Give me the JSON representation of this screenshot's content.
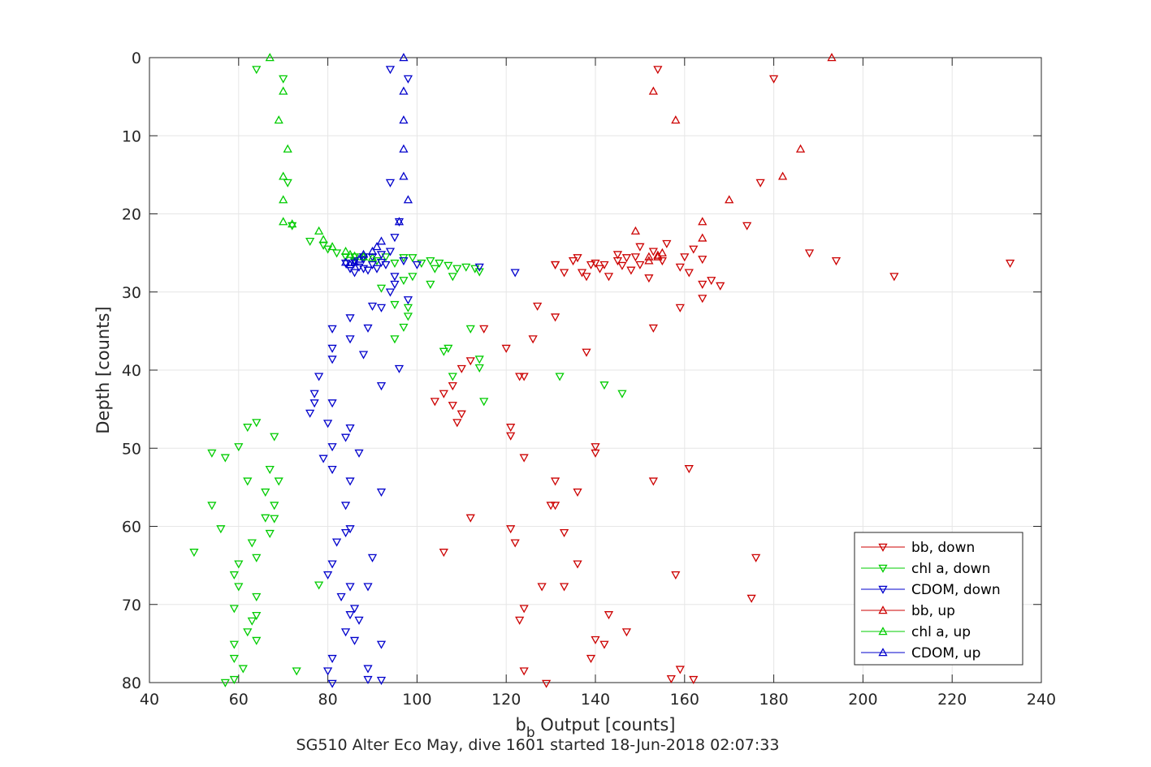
{
  "chart_data": {
    "type": "scatter",
    "xlabel": "b_b Output [counts]",
    "xlabel_main": "b",
    "xlabel_sub": "b",
    "xlabel_rest": " Output [counts]",
    "ylabel": "Depth [counts]",
    "footer": "SG510 Alter Eco May, dive 1601 started 18-Jun-2018 02:07:33",
    "xlim": [
      40,
      240
    ],
    "ylim": [
      0,
      80
    ],
    "y_reversed": true,
    "xticks": [
      40,
      60,
      80,
      100,
      120,
      140,
      160,
      180,
      200,
      220,
      240
    ],
    "yticks": [
      0,
      10,
      20,
      30,
      40,
      50,
      60,
      70,
      80
    ],
    "grid": true,
    "legend_position": "bottom-right",
    "series": [
      {
        "name": "bb, down",
        "color": "#cc0000",
        "marker": "triangle-down",
        "points": [
          [
            154,
            1.5
          ],
          [
            180,
            2.7
          ],
          [
            177,
            16
          ],
          [
            174,
            21.5
          ],
          [
            188,
            25
          ],
          [
            194,
            26
          ],
          [
            233,
            26.3
          ],
          [
            207,
            28
          ],
          [
            149,
            25.5
          ],
          [
            145,
            26
          ],
          [
            140,
            26.3
          ],
          [
            136,
            25.6
          ],
          [
            131,
            26.5
          ],
          [
            133,
            27.5
          ],
          [
            148,
            27.2
          ],
          [
            143,
            28
          ],
          [
            138,
            28
          ],
          [
            160,
            25.5
          ],
          [
            155,
            26
          ],
          [
            159,
            26.8
          ],
          [
            164,
            25.8
          ],
          [
            166,
            28.5
          ],
          [
            168,
            29.2
          ],
          [
            164,
            29
          ],
          [
            164,
            30.8
          ],
          [
            159,
            32
          ],
          [
            153,
            34.6
          ],
          [
            127,
            31.8
          ],
          [
            131,
            33.2
          ],
          [
            138,
            37.7
          ],
          [
            126,
            36
          ],
          [
            120,
            37.2
          ],
          [
            112,
            38.8
          ],
          [
            110,
            39.8
          ],
          [
            115,
            34.7
          ],
          [
            123,
            40.8
          ],
          [
            124,
            40.8
          ],
          [
            108,
            42
          ],
          [
            106,
            43
          ],
          [
            104,
            44
          ],
          [
            108,
            44.5
          ],
          [
            110,
            45.6
          ],
          [
            109,
            46.7
          ],
          [
            121,
            47.3
          ],
          [
            121,
            48.4
          ],
          [
            140,
            49.8
          ],
          [
            140,
            50.6
          ],
          [
            124,
            51.2
          ],
          [
            161,
            52.6
          ],
          [
            131,
            54.2
          ],
          [
            153,
            54.2
          ],
          [
            136,
            55.6
          ],
          [
            130,
            57.3
          ],
          [
            131,
            57.3
          ],
          [
            112,
            58.9
          ],
          [
            121,
            60.3
          ],
          [
            133,
            60.8
          ],
          [
            122,
            62.1
          ],
          [
            106,
            63.3
          ],
          [
            176,
            64
          ],
          [
            136,
            64.8
          ],
          [
            158,
            66.2
          ],
          [
            128,
            67.7
          ],
          [
            133,
            67.7
          ],
          [
            175,
            69.2
          ],
          [
            124,
            70.5
          ],
          [
            143,
            71.3
          ],
          [
            123,
            72
          ],
          [
            147,
            73.5
          ],
          [
            140,
            74.5
          ],
          [
            142,
            75.1
          ],
          [
            139,
            76.9
          ],
          [
            124,
            78.5
          ],
          [
            159,
            78.3
          ],
          [
            157,
            79.5
          ],
          [
            162,
            79.6
          ],
          [
            129,
            80.1
          ],
          [
            131,
            26.5
          ],
          [
            139,
            26.5
          ],
          [
            142,
            26.5
          ],
          [
            135,
            26
          ],
          [
            147,
            25.6
          ],
          [
            152,
            28.2
          ],
          [
            162,
            24.5
          ],
          [
            161,
            27.5
          ],
          [
            156,
            23.8
          ],
          [
            150,
            24.2
          ],
          [
            145,
            25.2
          ],
          [
            150,
            26.5
          ],
          [
            153,
            24.8
          ],
          [
            146,
            26.6
          ],
          [
            141,
            27
          ],
          [
            137,
            27.5
          ]
        ]
      },
      {
        "name": "chl a, down",
        "color": "#00cc00",
        "marker": "triangle-down",
        "points": [
          [
            64,
            1.5
          ],
          [
            70,
            2.7
          ],
          [
            71,
            16
          ],
          [
            72,
            21.5
          ],
          [
            76,
            23.5
          ],
          [
            79,
            24
          ],
          [
            80,
            24.5
          ],
          [
            82,
            25
          ],
          [
            84,
            25.5
          ],
          [
            86,
            25.5
          ],
          [
            88,
            25.5
          ],
          [
            91,
            26
          ],
          [
            93,
            25.5
          ],
          [
            95,
            26.3
          ],
          [
            97,
            25.6
          ],
          [
            99,
            25.6
          ],
          [
            101,
            26.3
          ],
          [
            103,
            26
          ],
          [
            105,
            26.3
          ],
          [
            107,
            26.6
          ],
          [
            109,
            27
          ],
          [
            111,
            26.8
          ],
          [
            113,
            27
          ],
          [
            114,
            27.4
          ],
          [
            104,
            27
          ],
          [
            108,
            28
          ],
          [
            103,
            29
          ],
          [
            99,
            28
          ],
          [
            97,
            28.5
          ],
          [
            92,
            29.5
          ],
          [
            95,
            31.6
          ],
          [
            98,
            32
          ],
          [
            98,
            33.1
          ],
          [
            97,
            34.5
          ],
          [
            95,
            36
          ],
          [
            106,
            37.6
          ],
          [
            114,
            38.6
          ],
          [
            107,
            37.2
          ],
          [
            112,
            34.7
          ],
          [
            114,
            39.7
          ],
          [
            108,
            40.8
          ],
          [
            132,
            40.8
          ],
          [
            142,
            41.9
          ],
          [
            146,
            43
          ],
          [
            115,
            44
          ],
          [
            64,
            46.7
          ],
          [
            62,
            47.3
          ],
          [
            68,
            48.5
          ],
          [
            60,
            49.8
          ],
          [
            54,
            50.6
          ],
          [
            57,
            51.2
          ],
          [
            67,
            52.7
          ],
          [
            62,
            54.2
          ],
          [
            69,
            54.2
          ],
          [
            66,
            55.6
          ],
          [
            54,
            57.3
          ],
          [
            68,
            57.3
          ],
          [
            66,
            58.9
          ],
          [
            56,
            60.3
          ],
          [
            67,
            60.9
          ],
          [
            63,
            62.1
          ],
          [
            50,
            63.3
          ],
          [
            64,
            64
          ],
          [
            60,
            64.8
          ],
          [
            59,
            66.2
          ],
          [
            60,
            67.7
          ],
          [
            78,
            67.5
          ],
          [
            64,
            69
          ],
          [
            59,
            70.5
          ],
          [
            64,
            71.4
          ],
          [
            63,
            72.1
          ],
          [
            62,
            73.5
          ],
          [
            64,
            74.6
          ],
          [
            59,
            75.1
          ],
          [
            59,
            76.9
          ],
          [
            61,
            78.2
          ],
          [
            73,
            78.5
          ],
          [
            59,
            79.6
          ],
          [
            57,
            80
          ],
          [
            68,
            59
          ]
        ]
      },
      {
        "name": "CDOM, down",
        "color": "#0000cc",
        "marker": "triangle-down",
        "points": [
          [
            94,
            1.5
          ],
          [
            98,
            2.7
          ],
          [
            94,
            16
          ],
          [
            96,
            21
          ],
          [
            95,
            23
          ],
          [
            94,
            24.8
          ],
          [
            92,
            25.2
          ],
          [
            90,
            25.5
          ],
          [
            88,
            25.8
          ],
          [
            86,
            26
          ],
          [
            84,
            26.3
          ],
          [
            85,
            27
          ],
          [
            86,
            27.5
          ],
          [
            88,
            27
          ],
          [
            90,
            26.5
          ],
          [
            92,
            26.2
          ],
          [
            88,
            25.5
          ],
          [
            86,
            26.2
          ],
          [
            87,
            26.8
          ],
          [
            89,
            27.2
          ],
          [
            91,
            27
          ],
          [
            93,
            26.5
          ],
          [
            97,
            26
          ],
          [
            100,
            26.5
          ],
          [
            95,
            28
          ],
          [
            95,
            29
          ],
          [
            94,
            30
          ],
          [
            98,
            31
          ],
          [
            90,
            31.8
          ],
          [
            92,
            32
          ],
          [
            85,
            33.3
          ],
          [
            89,
            34.6
          ],
          [
            81,
            34.7
          ],
          [
            85,
            36
          ],
          [
            81,
            37.2
          ],
          [
            81,
            38.6
          ],
          [
            88,
            38
          ],
          [
            96,
            39.8
          ],
          [
            92,
            42
          ],
          [
            78,
            40.8
          ],
          [
            77,
            43
          ],
          [
            77,
            44.2
          ],
          [
            81,
            44.2
          ],
          [
            76,
            45.5
          ],
          [
            80,
            46.8
          ],
          [
            85,
            47.4
          ],
          [
            84,
            48.6
          ],
          [
            81,
            49.8
          ],
          [
            87,
            50.6
          ],
          [
            79,
            51.3
          ],
          [
            81,
            52.7
          ],
          [
            85,
            54.2
          ],
          [
            92,
            55.6
          ],
          [
            84,
            57.3
          ],
          [
            85,
            60.3
          ],
          [
            84,
            60.8
          ],
          [
            82,
            62
          ],
          [
            81,
            64.8
          ],
          [
            90,
            64
          ],
          [
            80,
            66.2
          ],
          [
            85,
            67.7
          ],
          [
            89,
            67.7
          ],
          [
            83,
            69
          ],
          [
            86,
            70.5
          ],
          [
            85,
            71.3
          ],
          [
            87,
            72
          ],
          [
            84,
            73.5
          ],
          [
            86,
            74.6
          ],
          [
            92,
            75.1
          ],
          [
            81,
            76.9
          ],
          [
            89,
            78.2
          ],
          [
            80,
            78.5
          ],
          [
            89,
            79.6
          ],
          [
            92,
            79.7
          ],
          [
            81,
            80.1
          ],
          [
            114,
            26.8
          ],
          [
            122,
            27.5
          ]
        ]
      },
      {
        "name": "bb, up",
        "color": "#cc0000",
        "marker": "triangle-up",
        "points": [
          [
            193,
            0
          ],
          [
            153,
            4.3
          ],
          [
            158,
            8
          ],
          [
            186,
            11.7
          ],
          [
            182,
            15.2
          ],
          [
            170,
            18.2
          ],
          [
            164,
            21
          ],
          [
            149,
            22.2
          ],
          [
            164,
            23.1
          ],
          [
            155,
            25
          ],
          [
            154,
            25.3
          ],
          [
            154,
            25.5
          ],
          [
            152,
            25.5
          ],
          [
            152,
            26
          ]
        ]
      },
      {
        "name": "chl a, up",
        "color": "#00cc00",
        "marker": "triangle-up",
        "points": [
          [
            67,
            0
          ],
          [
            70,
            4.3
          ],
          [
            69,
            8
          ],
          [
            71,
            11.7
          ],
          [
            70,
            15.2
          ],
          [
            70,
            18.2
          ],
          [
            70,
            21
          ],
          [
            72,
            21.3
          ],
          [
            78,
            22.2
          ],
          [
            79,
            23.3
          ],
          [
            81,
            24.2
          ],
          [
            84,
            24.8
          ],
          [
            85,
            25.2
          ],
          [
            86,
            25.4
          ],
          [
            88,
            25.5
          ],
          [
            90,
            25.6
          ]
        ]
      },
      {
        "name": "CDOM, up",
        "color": "#0000cc",
        "marker": "triangle-up",
        "points": [
          [
            97,
            0
          ],
          [
            97,
            4.3
          ],
          [
            97,
            8
          ],
          [
            97,
            11.7
          ],
          [
            97,
            15.2
          ],
          [
            98,
            18.2
          ],
          [
            96,
            21
          ],
          [
            92,
            23.5
          ],
          [
            91,
            24.2
          ],
          [
            90,
            24.8
          ],
          [
            88,
            25.2
          ],
          [
            87,
            25.8
          ],
          [
            86,
            26.2
          ],
          [
            85,
            26.5
          ],
          [
            84,
            26.2
          ]
        ]
      }
    ]
  }
}
